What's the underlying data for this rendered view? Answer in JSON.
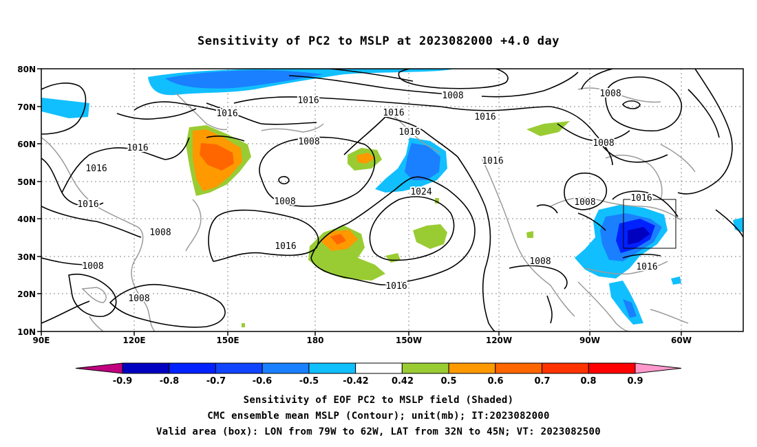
{
  "title": "Sensitivity of PC2 to MSLP at 2023082000 +4.0 day",
  "axes": {
    "lat_labels": [
      "80N",
      "70N",
      "60N",
      "50N",
      "40N",
      "30N",
      "20N",
      "10N"
    ],
    "lon_labels": [
      "90E",
      "120E",
      "150E",
      "180",
      "150W",
      "120W",
      "90W",
      "60W"
    ]
  },
  "contour_labels": {
    "c1": "1016",
    "c2": "1008",
    "c3": "1016",
    "c4": "1016",
    "c5": "1016",
    "c6": "1008",
    "c7": "1016",
    "c8": "1016",
    "c9": "1016",
    "c10": "1008",
    "c11": "1016",
    "c12": "1008",
    "c13": "1024",
    "c14": "1016",
    "c15": "1016",
    "c16": "1016",
    "c17": "1008",
    "c18": "1008",
    "c19": "1016",
    "c20": "1008",
    "c21": "1008",
    "c22": "1008",
    "c23": "1016",
    "c24": "1008"
  },
  "colorbar": {
    "labels": [
      "-0.9",
      "-0.8",
      "-0.7",
      "-0.6",
      "-0.5",
      "-0.42",
      "0.42",
      "0.5",
      "0.6",
      "0.7",
      "0.8",
      "0.9"
    ],
    "colors": [
      "#c0007f",
      "#0000c0",
      "#0022ff",
      "#1144ff",
      "#1a80ff",
      "#11bfff",
      "#ffffff",
      "#99cc33",
      "#ff9900",
      "#ff6600",
      "#ff3300",
      "#ff0000",
      "#ff99cc"
    ]
  },
  "captions": {
    "line1": "Sensitivity of EOF PC2 to MSLP field (Shaded)",
    "line2": "CMC ensemble mean MSLP (Contour); unit(mb); IT:2023082000",
    "line3": "Valid area (box): LON from 79W to 62W, LAT from 32N to 45N; VT: 2023082500"
  }
}
